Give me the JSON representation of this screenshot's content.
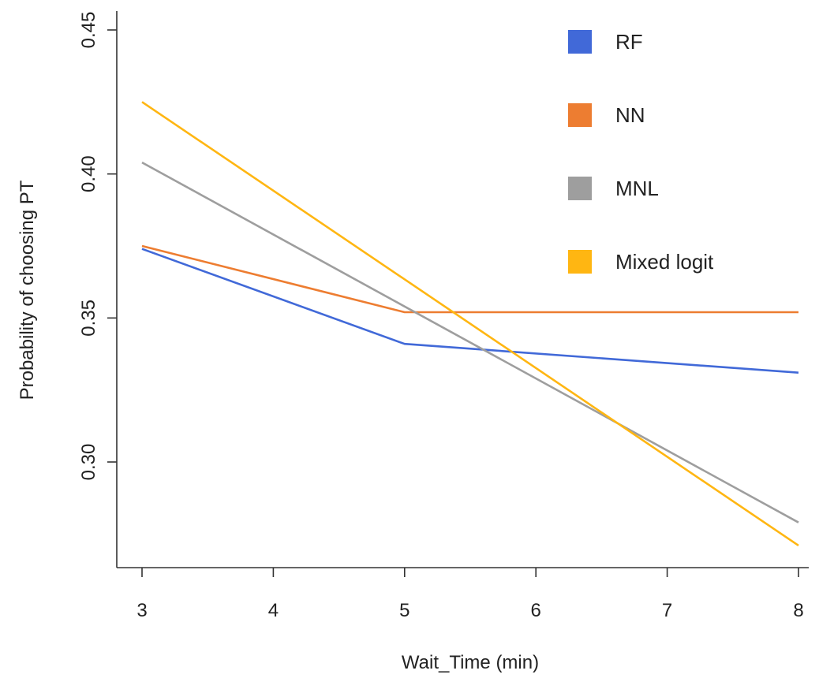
{
  "chart_data": {
    "type": "line",
    "title": "",
    "xlabel": "Wait_Time (min)",
    "ylabel": "Probability of choosing PT",
    "xlim": [
      3,
      8
    ],
    "ylim": [
      0.27,
      0.45
    ],
    "xticks": [
      3,
      4,
      5,
      6,
      7,
      8
    ],
    "yticks": [
      0.3,
      0.35,
      0.4,
      0.45
    ],
    "ytick_labels": [
      "0.30",
      "0.35",
      "0.40",
      "0.45"
    ],
    "grid": false,
    "legend_position": "top-right",
    "series": [
      {
        "name": "RF",
        "color": "#4169d8",
        "x": [
          3,
          5,
          8
        ],
        "y": [
          0.374,
          0.341,
          0.331
        ]
      },
      {
        "name": "NN",
        "color": "#ed7d31",
        "x": [
          3,
          5,
          8
        ],
        "y": [
          0.375,
          0.352,
          0.352
        ]
      },
      {
        "name": "MNL",
        "color": "#9e9e9e",
        "x": [
          3,
          8
        ],
        "y": [
          0.404,
          0.279
        ]
      },
      {
        "name": "Mixed logit",
        "color": "#ffb612",
        "x": [
          3,
          8
        ],
        "y": [
          0.425,
          0.271
        ]
      }
    ]
  }
}
